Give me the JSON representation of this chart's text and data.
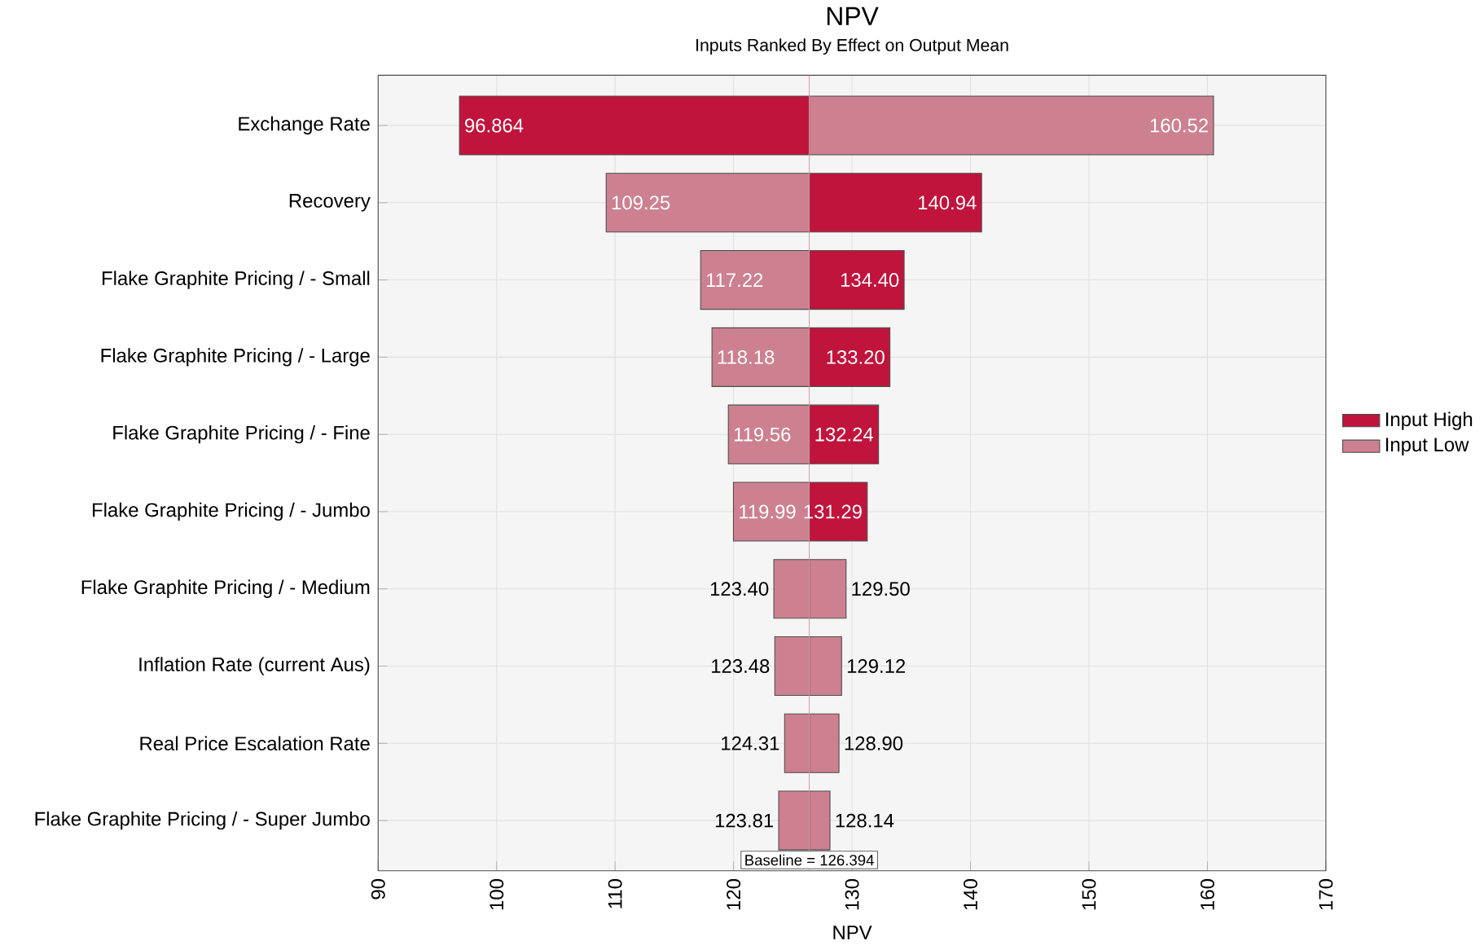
{
  "chart_data": {
    "type": "bar",
    "orientation": "horizontal",
    "title": "NPV",
    "subtitle": "Inputs Ranked By Effect on Output Mean",
    "xlabel": "NPV",
    "categories": [
      "Exchange Rate",
      "Recovery",
      "Flake Graphite Pricing /  - Small",
      "Flake Graphite Pricing /  - Large",
      "Flake Graphite Pricing /  - Fine",
      "Flake Graphite Pricing /  - Jumbo",
      "Flake Graphite Pricing /  - Medium",
      "Inflation Rate (current Aus)",
      "Real Price Escalation Rate",
      "Flake Graphite Pricing /  - Super Jumbo"
    ],
    "series": [
      {
        "name": "Input High",
        "color": "#c0143c",
        "colors": [
          "#c0143c",
          "#c0143c",
          "#c0143c",
          "#c0143c",
          "#c0143c",
          "#c0143c",
          "#cc8090",
          "#cc8090",
          "#cc8090",
          "#cc8090"
        ],
        "base": [
          126.394,
          126.394,
          126.394,
          126.394,
          126.394,
          126.394,
          126.394,
          126.394,
          126.394,
          126.394
        ],
        "values": [
          -29.53,
          14.546,
          8.006,
          6.806,
          5.846,
          4.896,
          3.106,
          2.726,
          2.506,
          1.746
        ],
        "value_labels": [
          "96.864",
          "140.94",
          "134.40",
          "133.20",
          "132.24",
          "131.29",
          "129.50",
          "129.12",
          "128.90",
          "128.14"
        ]
      },
      {
        "name": "Input Low",
        "color": "#cc8090",
        "base": [
          126.394,
          126.394,
          126.394,
          126.394,
          126.394,
          126.394,
          126.394,
          126.394,
          126.394,
          126.394
        ],
        "values": [
          34.126,
          -17.144,
          -9.174,
          -8.214,
          -6.834,
          -6.404,
          -2.994,
          -2.914,
          -2.084,
          -2.584
        ],
        "value_labels": [
          "160.52",
          "109.25",
          "117.22",
          "118.18",
          "119.56",
          "119.99",
          "123.40",
          "123.48",
          "124.31",
          "123.81"
        ]
      }
    ],
    "xlim": [
      90,
      170
    ],
    "xticks": [
      90,
      100,
      110,
      120,
      130,
      140,
      150,
      160,
      170
    ],
    "ref_lines": [
      {
        "axis": "x",
        "value": 126.394,
        "label": "Baseline = 126.394",
        "color": "#d89aa4"
      }
    ],
    "grid": true,
    "legend": "right"
  }
}
